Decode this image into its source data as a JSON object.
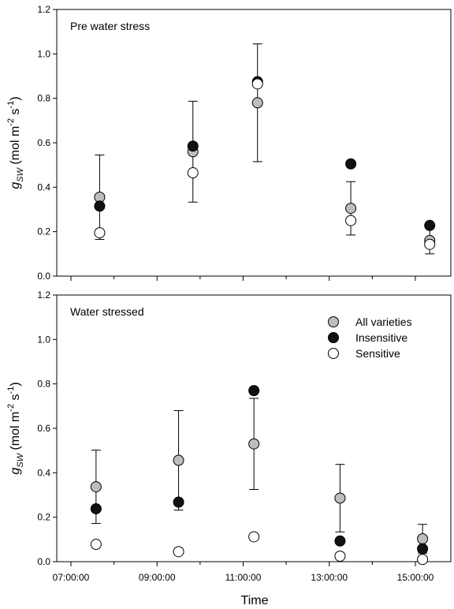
{
  "chart_data": {
    "type": "scatter",
    "xlabel": "Time",
    "x_ticks": [
      "07:00:00",
      "09:00:00",
      "11:00:00",
      "13:00:00",
      "15:00:00"
    ],
    "legend": {
      "placement": "top-right of lower panel",
      "entries": [
        {
          "name": "All varieties",
          "fill": "#bdbdbd"
        },
        {
          "name": "Insensitive",
          "fill": "#111111"
        },
        {
          "name": "Sensitive",
          "fill": "#ffffff"
        }
      ]
    },
    "panels": [
      {
        "label": "Pre water stress",
        "ylabel_main": "g",
        "ylabel_sub": "SW",
        "ylabel_units": "(mol m",
        "ylabel_exp1": "-2",
        "ylabel_mid": " s",
        "ylabel_exp2": "-1",
        "ylabel_close": ")",
        "ylim": [
          0,
          1.2
        ],
        "y_ticks": [
          "0.0",
          "0.2",
          "0.4",
          "0.6",
          "0.8",
          "1.0",
          "1.2"
        ],
        "series": [
          {
            "name": "All varieties",
            "points": [
              {
                "x": "07:40",
                "y": 0.355,
                "err_lo": 0.165,
                "err_hi": 0.545
              },
              {
                "x": "09:50",
                "y": 0.56,
                "err_lo": 0.333,
                "err_hi": 0.787
              },
              {
                "x": "11:20",
                "y": 0.78,
                "err_lo": 0.515,
                "err_hi": 1.045
              },
              {
                "x": "13:30",
                "y": 0.305,
                "err_lo": 0.185,
                "err_hi": 0.425
              },
              {
                "x": "15:20",
                "y": 0.16,
                "err_lo": 0.1,
                "err_hi": 0.225
              }
            ]
          },
          {
            "name": "Insensitive",
            "points": [
              {
                "x": "07:40",
                "y": 0.315
              },
              {
                "x": "09:50",
                "y": 0.585
              },
              {
                "x": "11:20",
                "y": 0.875
              },
              {
                "x": "13:30",
                "y": 0.505
              },
              {
                "x": "15:20",
                "y": 0.228
              }
            ]
          },
          {
            "name": "Sensitive",
            "points": [
              {
                "x": "07:40",
                "y": 0.195
              },
              {
                "x": "09:50",
                "y": 0.465
              },
              {
                "x": "11:20",
                "y": 0.865
              },
              {
                "x": "13:30",
                "y": 0.25
              },
              {
                "x": "15:20",
                "y": 0.143
              }
            ]
          }
        ]
      },
      {
        "label": "Water stressed",
        "ylabel_main": "g",
        "ylabel_sub": "SW",
        "ylabel_units": "(mol m",
        "ylabel_exp1": "-2",
        "ylabel_mid": " s",
        "ylabel_exp2": "-1",
        "ylabel_close": ")",
        "ylim": [
          0,
          1.2
        ],
        "y_ticks": [
          "0.0",
          "0.2",
          "0.4",
          "0.6",
          "0.8",
          "1.0",
          "1.2"
        ],
        "series": [
          {
            "name": "All varieties",
            "points": [
              {
                "x": "07:35",
                "y": 0.337,
                "err_lo": 0.172,
                "err_hi": 0.502
              },
              {
                "x": "09:30",
                "y": 0.456,
                "err_lo": 0.232,
                "err_hi": 0.68
              },
              {
                "x": "11:15",
                "y": 0.53,
                "err_lo": 0.325,
                "err_hi": 0.735
              },
              {
                "x": "13:15",
                "y": 0.286,
                "err_lo": 0.134,
                "err_hi": 0.438
              },
              {
                "x": "15:10",
                "y": 0.103,
                "err_lo": 0.038,
                "err_hi": 0.168
              }
            ]
          },
          {
            "name": "Insensitive",
            "points": [
              {
                "x": "07:35",
                "y": 0.238
              },
              {
                "x": "09:30",
                "y": 0.268
              },
              {
                "x": "11:15",
                "y": 0.77
              },
              {
                "x": "13:15",
                "y": 0.093
              },
              {
                "x": "15:10",
                "y": 0.058
              }
            ]
          },
          {
            "name": "Sensitive",
            "points": [
              {
                "x": "07:35",
                "y": 0.078
              },
              {
                "x": "09:30",
                "y": 0.045
              },
              {
                "x": "11:15",
                "y": 0.112
              },
              {
                "x": "13:15",
                "y": 0.025
              },
              {
                "x": "15:10",
                "y": 0.01
              }
            ]
          }
        ]
      }
    ]
  }
}
